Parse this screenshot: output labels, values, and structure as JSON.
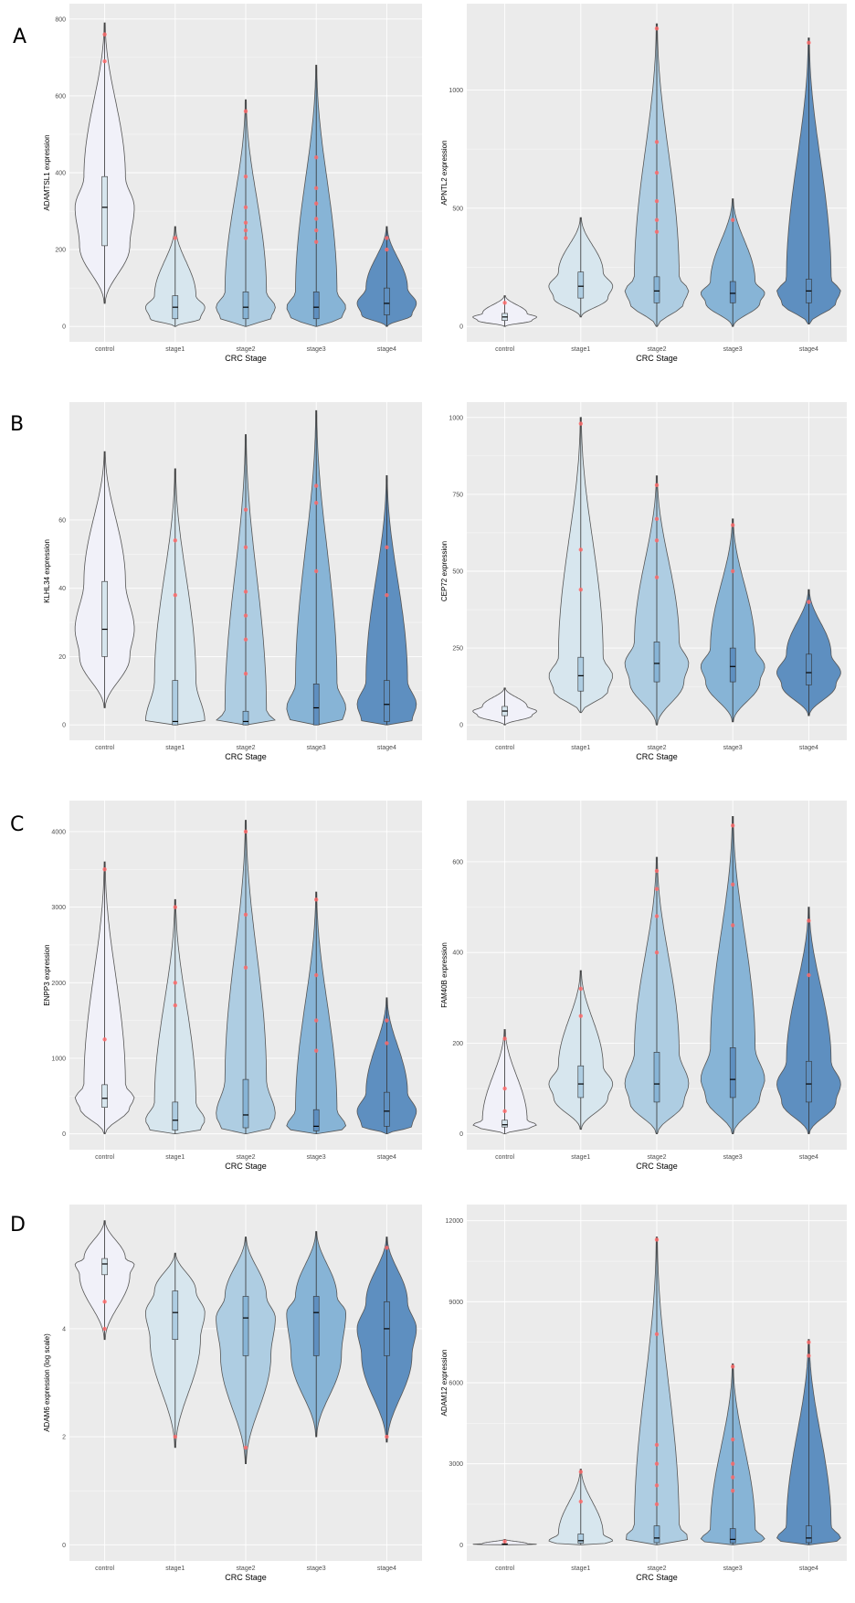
{
  "panel_letters": [
    "A",
    "B",
    "C",
    "D"
  ],
  "colors": {
    "panel_bg": "#EBEBEB",
    "grid": "#FFFFFF",
    "outlier": "#FF6B6B",
    "fills": [
      "#F1F1F9",
      "#D7E6EE",
      "#AECDE2",
      "#87B4D6",
      "#5E8FC0"
    ]
  },
  "chart_data": [
    {
      "type": "violin",
      "panel": "A-left",
      "xlabel": "CRC Stage",
      "ylabel": "ADAMTSL1 expression",
      "categories": [
        "control",
        "stage1",
        "stage2",
        "stage3",
        "stage4"
      ],
      "yticks": [
        0,
        200,
        400,
        600,
        800
      ],
      "ylim": [
        0,
        800
      ],
      "series": [
        {
          "min": 60,
          "q1": 210,
          "median": 310,
          "q3": 390,
          "max": 790,
          "outliers": [
            760,
            690
          ]
        },
        {
          "min": 0,
          "q1": 20,
          "median": 50,
          "q3": 80,
          "max": 260,
          "outliers": [
            230
          ]
        },
        {
          "min": 0,
          "q1": 20,
          "median": 50,
          "q3": 90,
          "max": 590,
          "outliers": [
            560,
            390,
            310,
            270,
            250,
            230
          ]
        },
        {
          "min": 0,
          "q1": 20,
          "median": 50,
          "q3": 90,
          "max": 680,
          "outliers": [
            440,
            360,
            320,
            280,
            250,
            220
          ]
        },
        {
          "min": 0,
          "q1": 30,
          "median": 60,
          "q3": 100,
          "max": 260,
          "outliers": [
            230,
            200
          ]
        }
      ]
    },
    {
      "type": "violin",
      "panel": "A-right",
      "xlabel": "CRC Stage",
      "ylabel": "APNTL2 expression",
      "categories": [
        "control",
        "stage1",
        "stage2",
        "stage3",
        "stage4"
      ],
      "yticks": [
        0,
        500,
        1000
      ],
      "ylim": [
        0,
        1300
      ],
      "series": [
        {
          "min": 0,
          "q1": 25,
          "median": 40,
          "q3": 55,
          "max": 130,
          "outliers": [
            100
          ]
        },
        {
          "min": 40,
          "q1": 120,
          "median": 170,
          "q3": 230,
          "max": 460,
          "outliers": []
        },
        {
          "min": 0,
          "q1": 100,
          "median": 150,
          "q3": 210,
          "max": 1280,
          "outliers": [
            1260,
            780,
            650,
            530,
            450,
            400
          ]
        },
        {
          "min": 0,
          "q1": 100,
          "median": 140,
          "q3": 190,
          "max": 540,
          "outliers": [
            450
          ]
        },
        {
          "min": 10,
          "q1": 100,
          "median": 150,
          "q3": 200,
          "max": 1220,
          "outliers": [
            1200
          ]
        }
      ]
    },
    {
      "type": "violin",
      "panel": "B-left",
      "xlabel": "CRC Stage",
      "ylabel": "KLHL34 expression",
      "categories": [
        "control",
        "stage1",
        "stage2",
        "stage3",
        "stage4"
      ],
      "yticks": [
        0,
        20,
        40,
        60
      ],
      "ylim": [
        0,
        90
      ],
      "series": [
        {
          "min": 5,
          "q1": 20,
          "median": 28,
          "q3": 42,
          "max": 80,
          "outliers": []
        },
        {
          "min": 0,
          "q1": 0,
          "median": 1,
          "q3": 13,
          "max": 75,
          "outliers": [
            54,
            38
          ]
        },
        {
          "min": 0,
          "q1": 0,
          "median": 1,
          "q3": 4,
          "max": 85,
          "outliers": [
            63,
            52,
            39,
            32,
            25,
            15
          ]
        },
        {
          "min": 0,
          "q1": 0,
          "median": 5,
          "q3": 12,
          "max": 92,
          "outliers": [
            70,
            65,
            45
          ]
        },
        {
          "min": 0,
          "q1": 1,
          "median": 6,
          "q3": 13,
          "max": 73,
          "outliers": [
            52,
            38
          ]
        }
      ]
    },
    {
      "type": "violin",
      "panel": "B-right",
      "xlabel": "CRC Stage",
      "ylabel": "CEP72 expression",
      "categories": [
        "control",
        "stage1",
        "stage2",
        "stage3",
        "stage4"
      ],
      "yticks": [
        0,
        250,
        500,
        750,
        1000
      ],
      "ylim": [
        0,
        1000
      ],
      "series": [
        {
          "min": 0,
          "q1": 30,
          "median": 45,
          "q3": 60,
          "max": 120,
          "outliers": []
        },
        {
          "min": 40,
          "q1": 110,
          "median": 160,
          "q3": 220,
          "max": 1000,
          "outliers": [
            980,
            570,
            440
          ]
        },
        {
          "min": 0,
          "q1": 140,
          "median": 200,
          "q3": 270,
          "max": 810,
          "outliers": [
            780,
            670,
            600,
            480
          ]
        },
        {
          "min": 10,
          "q1": 140,
          "median": 190,
          "q3": 250,
          "max": 670,
          "outliers": [
            650,
            500
          ]
        },
        {
          "min": 30,
          "q1": 130,
          "median": 170,
          "q3": 230,
          "max": 440,
          "outliers": [
            400
          ]
        }
      ]
    },
    {
      "type": "violin",
      "panel": "C-left",
      "xlabel": "CRC Stage",
      "ylabel": "ENPP3 expression",
      "categories": [
        "control",
        "stage1",
        "stage2",
        "stage3",
        "stage4"
      ],
      "yticks": [
        0,
        1000,
        2000,
        3000,
        4000
      ],
      "ylim": [
        0,
        4200
      ],
      "series": [
        {
          "min": 0,
          "q1": 350,
          "median": 470,
          "q3": 650,
          "max": 3600,
          "outliers": [
            3500,
            1250
          ]
        },
        {
          "min": 0,
          "q1": 50,
          "median": 180,
          "q3": 420,
          "max": 3100,
          "outliers": [
            3000,
            2000,
            1700
          ]
        },
        {
          "min": 0,
          "q1": 80,
          "median": 250,
          "q3": 720,
          "max": 4150,
          "outliers": [
            4000,
            2900,
            2200
          ]
        },
        {
          "min": 0,
          "q1": 40,
          "median": 100,
          "q3": 320,
          "max": 3200,
          "outliers": [
            3100,
            2100,
            1500,
            1100
          ]
        },
        {
          "min": 0,
          "q1": 100,
          "median": 300,
          "q3": 550,
          "max": 1800,
          "outliers": [
            1500,
            1200
          ]
        }
      ]
    },
    {
      "type": "violin",
      "panel": "C-right",
      "xlabel": "CRC Stage",
      "ylabel": "FAM40B expression",
      "categories": [
        "control",
        "stage1",
        "stage2",
        "stage3",
        "stage4"
      ],
      "yticks": [
        0,
        200,
        400,
        600
      ],
      "ylim": [
        0,
        700
      ],
      "series": [
        {
          "min": 0,
          "q1": 15,
          "median": 20,
          "q3": 30,
          "max": 230,
          "outliers": [
            210,
            100,
            50
          ]
        },
        {
          "min": 10,
          "q1": 80,
          "median": 110,
          "q3": 150,
          "max": 360,
          "outliers": [
            320,
            260
          ]
        },
        {
          "min": 0,
          "q1": 70,
          "median": 110,
          "q3": 180,
          "max": 610,
          "outliers": [
            580,
            540,
            480,
            400
          ]
        },
        {
          "min": 0,
          "q1": 80,
          "median": 120,
          "q3": 190,
          "max": 700,
          "outliers": [
            680,
            550,
            460
          ]
        },
        {
          "min": 0,
          "q1": 70,
          "median": 110,
          "q3": 160,
          "max": 500,
          "outliers": [
            470,
            350
          ]
        }
      ]
    },
    {
      "type": "violin",
      "panel": "D-left",
      "xlabel": "CRC Stage",
      "ylabel": "ADAM6 expression (log scale)",
      "categories": [
        "control",
        "stage1",
        "stage2",
        "stage3",
        "stage4"
      ],
      "yticks": [
        0,
        2,
        4
      ],
      "ylim": [
        0,
        6
      ],
      "series": [
        {
          "min": 3.8,
          "q1": 5.0,
          "median": 5.2,
          "q3": 5.3,
          "max": 6.0,
          "outliers": [
            4.5,
            4.0
          ]
        },
        {
          "min": 1.8,
          "q1": 3.8,
          "median": 4.3,
          "q3": 4.7,
          "max": 5.4,
          "outliers": [
            2.0
          ]
        },
        {
          "min": 1.5,
          "q1": 3.5,
          "median": 4.2,
          "q3": 4.6,
          "max": 5.7,
          "outliers": [
            1.8
          ]
        },
        {
          "min": 2.0,
          "q1": 3.5,
          "median": 4.3,
          "q3": 4.6,
          "max": 5.8,
          "outliers": []
        },
        {
          "min": 1.9,
          "q1": 3.5,
          "median": 4.0,
          "q3": 4.5,
          "max": 5.7,
          "outliers": [
            5.5,
            2.0
          ]
        }
      ]
    },
    {
      "type": "violin",
      "panel": "D-right",
      "xlabel": "CRC Stage",
      "ylabel": "ADAM12 expression",
      "categories": [
        "control",
        "stage1",
        "stage2",
        "stage3",
        "stage4"
      ],
      "yticks": [
        0,
        3000,
        6000,
        9000,
        12000
      ],
      "ylim": [
        0,
        12000
      ],
      "series": [
        {
          "min": 0,
          "q1": 10,
          "median": 20,
          "q3": 40,
          "max": 200,
          "outliers": [
            120
          ]
        },
        {
          "min": 0,
          "q1": 60,
          "median": 150,
          "q3": 400,
          "max": 2800,
          "outliers": [
            2700,
            1600
          ]
        },
        {
          "min": 0,
          "q1": 80,
          "median": 250,
          "q3": 700,
          "max": 11400,
          "outliers": [
            11300,
            7800,
            3700,
            3000,
            2200,
            1500
          ]
        },
        {
          "min": 0,
          "q1": 70,
          "median": 200,
          "q3": 600,
          "max": 6700,
          "outliers": [
            6600,
            3900,
            3000,
            2500,
            2000
          ]
        },
        {
          "min": 0,
          "q1": 80,
          "median": 250,
          "q3": 700,
          "max": 7600,
          "outliers": [
            7500,
            7000
          ]
        }
      ]
    }
  ]
}
